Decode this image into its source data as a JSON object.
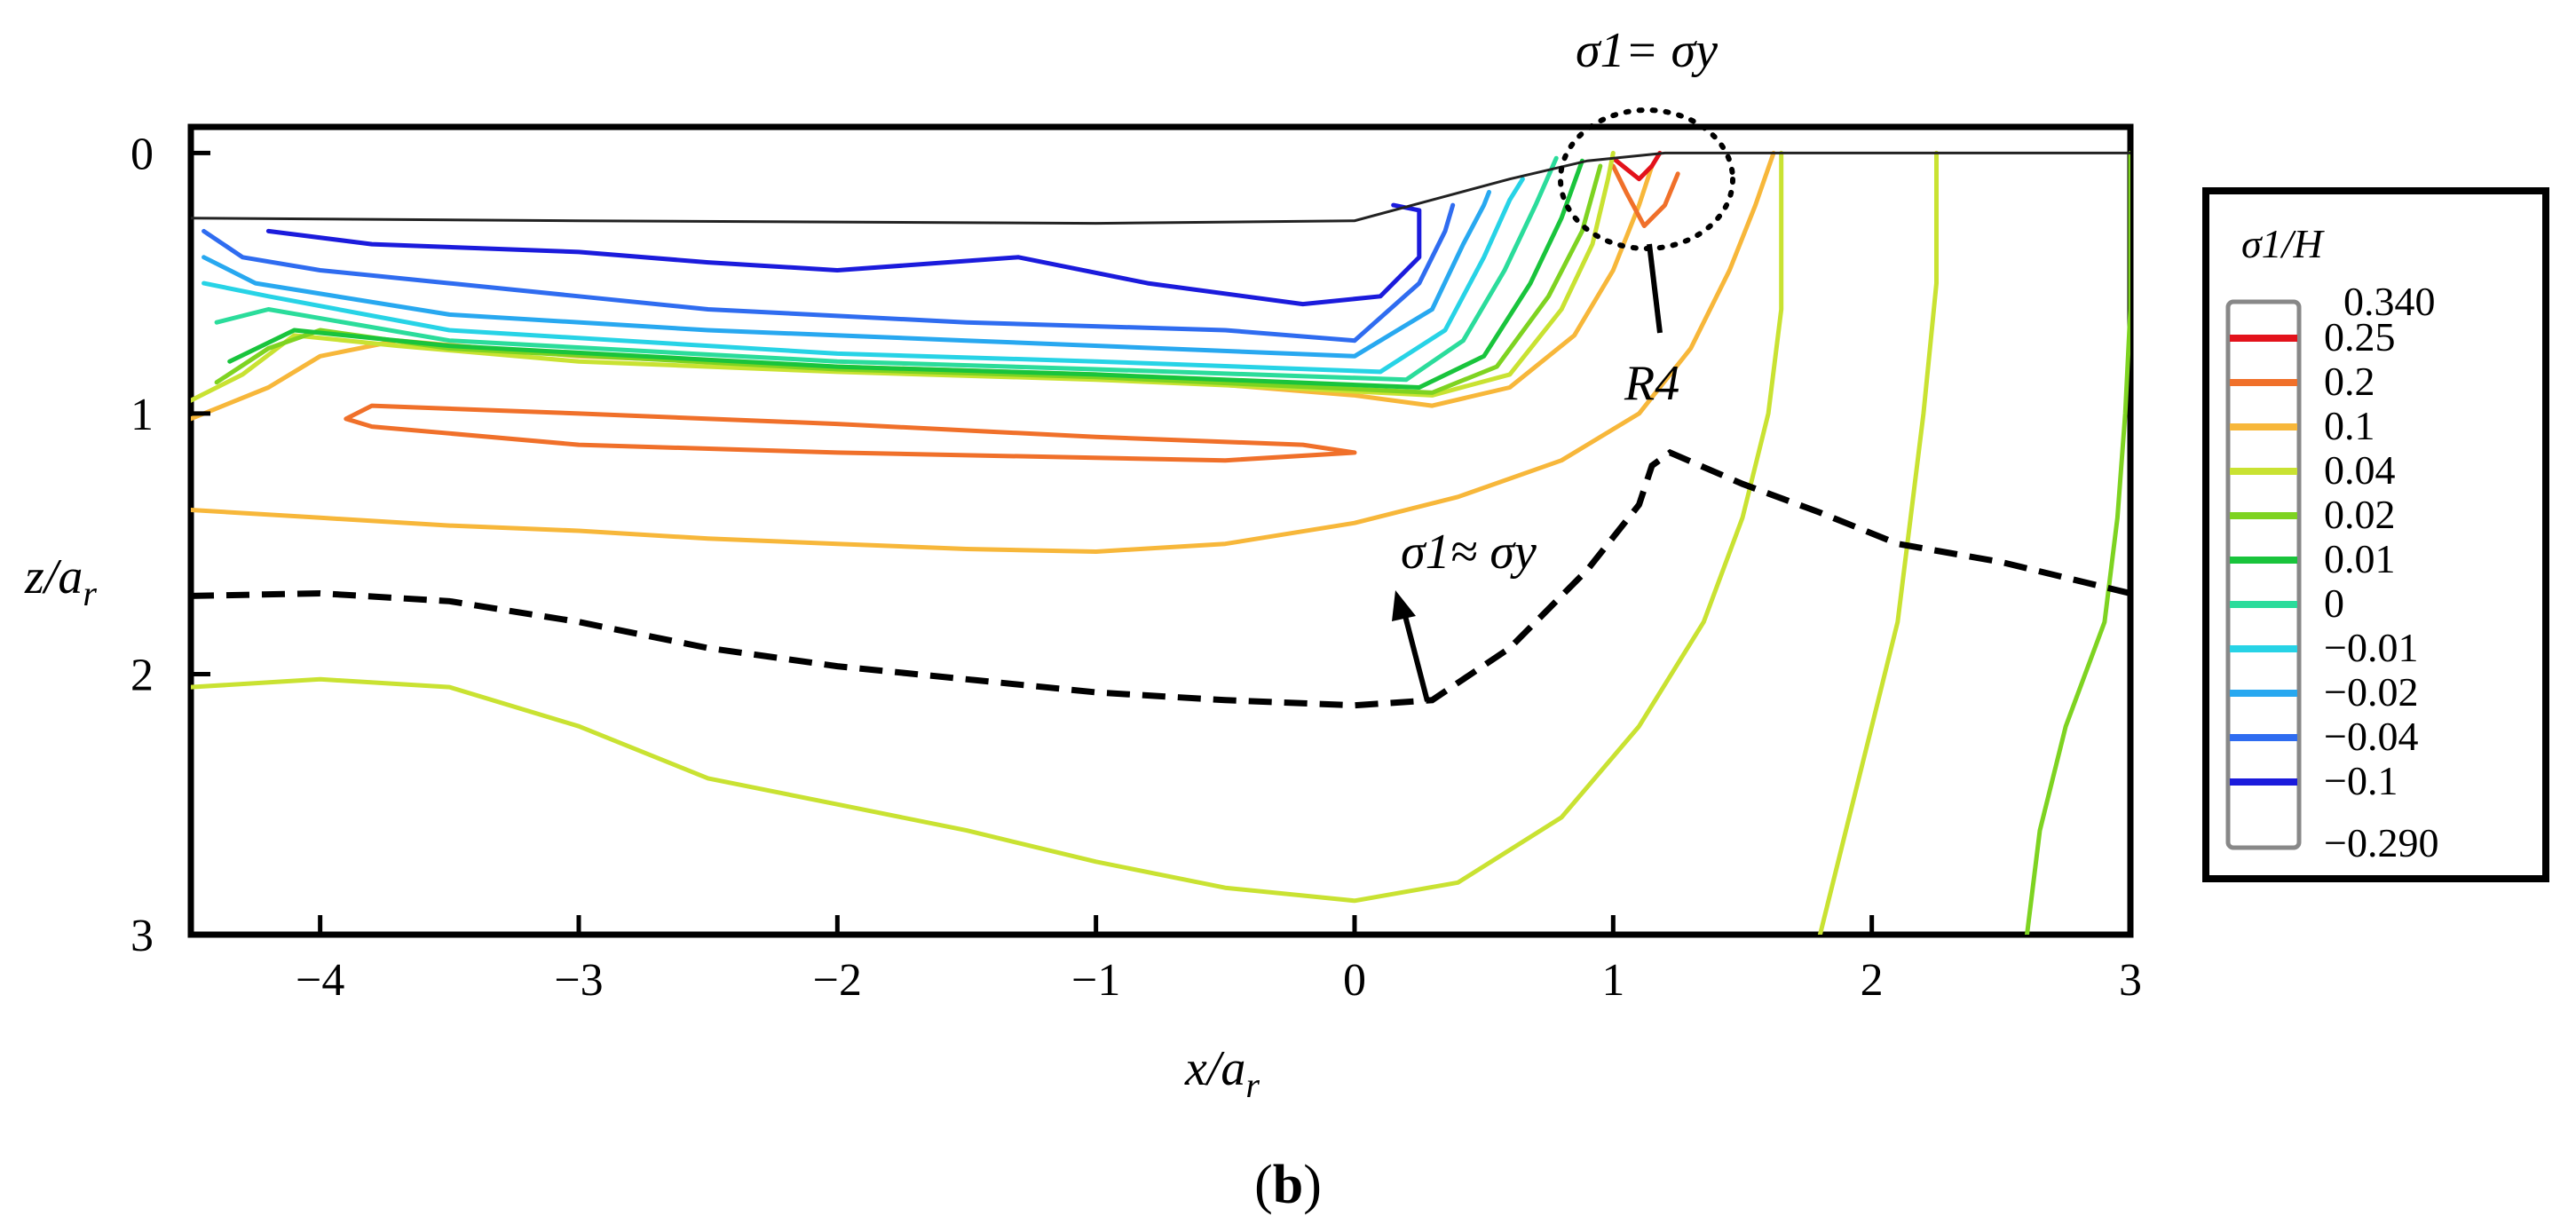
{
  "chart_data": {
    "type": "contour",
    "xlabel_symbol": "x",
    "xlabel_sub": "r",
    "xlabel_pre": "/a",
    "ylabel_symbol": "z",
    "ylabel_pre": "/a",
    "ylabel_sub": "r",
    "xlim": [
      -4.5,
      3
    ],
    "ylim": [
      3,
      -0.1
    ],
    "x_ticks": [
      "−4",
      "−3",
      "−2",
      "−1",
      "0",
      "1",
      "2",
      "3"
    ],
    "x_tick_values": [
      -4,
      -3,
      -2,
      -1,
      0,
      1,
      2,
      3
    ],
    "y_ticks": [
      "0",
      "1",
      "2",
      "3"
    ],
    "y_tick_values": [
      0,
      1,
      2,
      3
    ],
    "caption": "b",
    "annotations": {
      "yield_top": "σ1= σy",
      "yield_approx": "σ1≈ σy",
      "region_label": "R4"
    },
    "legend": {
      "title": "σ1/H",
      "max_label": "0.340",
      "min_label": "−0.290",
      "levels": [
        {
          "label": "0.25",
          "value": 0.25,
          "color": "#e3121b"
        },
        {
          "label": "0.2",
          "value": 0.2,
          "color": "#f0702a"
        },
        {
          "label": "0.1",
          "value": 0.1,
          "color": "#f7b73a"
        },
        {
          "label": "0.04",
          "value": 0.04,
          "color": "#c9e232"
        },
        {
          "label": "0.02",
          "value": 0.02,
          "color": "#7ed321"
        },
        {
          "label": "0.01",
          "value": 0.01,
          "color": "#19c43c"
        },
        {
          "label": "0",
          "value": 0,
          "color": "#2bdc9b"
        },
        {
          "label": "−0.01",
          "value": -0.01,
          "color": "#27d3e6"
        },
        {
          "label": "−0.02",
          "value": -0.02,
          "color": "#28a8f0"
        },
        {
          "label": "−0.04",
          "value": -0.04,
          "color": "#2f6cf0"
        },
        {
          "label": "−0.1",
          "value": -0.1,
          "color": "#1b1bdc"
        }
      ]
    },
    "contours": [
      {
        "level": 0.04,
        "points": [
          [
            -4.5,
            2.05
          ],
          [
            -4,
            2.02
          ],
          [
            -3.5,
            2.05
          ],
          [
            -3,
            2.2
          ],
          [
            -2.5,
            2.4
          ],
          [
            -2,
            2.5
          ],
          [
            -1.5,
            2.6
          ],
          [
            -1,
            2.72
          ],
          [
            -0.5,
            2.82
          ],
          [
            0,
            2.87
          ],
          [
            0.4,
            2.8
          ],
          [
            0.8,
            2.55
          ],
          [
            1.1,
            2.2
          ],
          [
            1.35,
            1.8
          ],
          [
            1.5,
            1.4
          ],
          [
            1.6,
            1
          ],
          [
            1.65,
            0.6
          ],
          [
            1.65,
            0.2
          ],
          [
            1.65,
            0
          ]
        ]
      },
      {
        "level": 0.04,
        "points": [
          [
            1.8,
            3
          ],
          [
            1.9,
            2.6
          ],
          [
            2,
            2.2
          ],
          [
            2.1,
            1.8
          ],
          [
            2.15,
            1.4
          ],
          [
            2.2,
            1
          ],
          [
            2.25,
            0.5
          ],
          [
            2.25,
            0
          ]
        ]
      },
      {
        "level": 0.02,
        "points": [
          [
            2.6,
            3
          ],
          [
            2.65,
            2.6
          ],
          [
            2.75,
            2.2
          ],
          [
            2.9,
            1.8
          ],
          [
            2.95,
            1.4
          ],
          [
            2.98,
            1
          ],
          [
            3,
            0.6
          ],
          [
            3,
            0
          ]
        ]
      },
      {
        "level": 0.1,
        "points": [
          [
            -4.5,
            1.37
          ],
          [
            -4,
            1.4
          ],
          [
            -3.5,
            1.43
          ],
          [
            -3,
            1.45
          ],
          [
            -2.5,
            1.48
          ],
          [
            -2,
            1.5
          ],
          [
            -1.5,
            1.52
          ],
          [
            -1,
            1.53
          ],
          [
            -0.5,
            1.5
          ],
          [
            0,
            1.42
          ],
          [
            0.4,
            1.32
          ],
          [
            0.8,
            1.18
          ],
          [
            1.1,
            1
          ],
          [
            1.3,
            0.75
          ],
          [
            1.45,
            0.45
          ],
          [
            1.55,
            0.2
          ],
          [
            1.62,
            0
          ]
        ]
      },
      {
        "level": 0.1,
        "points": [
          [
            -4.5,
            1.02
          ],
          [
            -4.2,
            0.9
          ],
          [
            -4,
            0.78
          ],
          [
            -3.7,
            0.72
          ],
          [
            -3,
            0.78
          ],
          [
            -2,
            0.82
          ],
          [
            -1,
            0.85
          ],
          [
            0,
            0.93
          ],
          [
            0.3,
            0.97
          ],
          [
            0.6,
            0.9
          ],
          [
            0.85,
            0.7
          ],
          [
            1,
            0.45
          ],
          [
            1.1,
            0.2
          ],
          [
            1.15,
            0.05
          ]
        ]
      },
      {
        "level": 0.2,
        "closed": true,
        "points": [
          [
            -3.9,
            1.02
          ],
          [
            -3.8,
            0.97
          ],
          [
            -3,
            1.0
          ],
          [
            -2,
            1.04
          ],
          [
            -1,
            1.09
          ],
          [
            -0.2,
            1.12
          ],
          [
            0,
            1.15
          ],
          [
            -0.5,
            1.18
          ],
          [
            -2,
            1.15
          ],
          [
            -3,
            1.12
          ],
          [
            -3.8,
            1.05
          ]
        ]
      },
      {
        "level": 0.2,
        "points": [
          [
            1,
            0.05
          ],
          [
            1.05,
            0.15
          ],
          [
            1.12,
            0.28
          ],
          [
            1.2,
            0.2
          ],
          [
            1.25,
            0.08
          ]
        ]
      },
      {
        "level": 0.25,
        "points": [
          [
            1,
            0.02
          ],
          [
            1.05,
            0.06
          ],
          [
            1.1,
            0.1
          ],
          [
            1.15,
            0.05
          ],
          [
            1.18,
            0
          ]
        ]
      },
      {
        "level": 0.04,
        "points": [
          [
            -4.5,
            0.95
          ],
          [
            -4.3,
            0.85
          ],
          [
            -4.1,
            0.7
          ],
          [
            -3.7,
            0.74
          ],
          [
            -3,
            0.8
          ],
          [
            -2,
            0.84
          ],
          [
            -1,
            0.87
          ],
          [
            -0.3,
            0.9
          ],
          [
            0.3,
            0.93
          ],
          [
            0.6,
            0.85
          ],
          [
            0.8,
            0.6
          ],
          [
            0.92,
            0.35
          ],
          [
            0.98,
            0.1
          ],
          [
            1,
            0
          ]
        ]
      },
      {
        "level": 0.02,
        "points": [
          [
            -4.4,
            0.88
          ],
          [
            -4.2,
            0.75
          ],
          [
            -4,
            0.68
          ],
          [
            -3.5,
            0.75
          ],
          [
            -2,
            0.83
          ],
          [
            -1,
            0.86
          ],
          [
            0.3,
            0.92
          ],
          [
            0.55,
            0.82
          ],
          [
            0.75,
            0.55
          ],
          [
            0.88,
            0.3
          ],
          [
            0.95,
            0.05
          ]
        ]
      },
      {
        "level": 0.01,
        "points": [
          [
            -4.35,
            0.8
          ],
          [
            -4.1,
            0.68
          ],
          [
            -3.5,
            0.74
          ],
          [
            -2,
            0.82
          ],
          [
            -1,
            0.85
          ],
          [
            0.25,
            0.9
          ],
          [
            0.5,
            0.78
          ],
          [
            0.68,
            0.5
          ],
          [
            0.8,
            0.25
          ],
          [
            0.88,
            0.03
          ]
        ]
      },
      {
        "level": 0,
        "points": [
          [
            -4.4,
            0.65
          ],
          [
            -4.2,
            0.6
          ],
          [
            -3.5,
            0.72
          ],
          [
            -2,
            0.8
          ],
          [
            -1,
            0.83
          ],
          [
            0.2,
            0.87
          ],
          [
            0.42,
            0.72
          ],
          [
            0.58,
            0.45
          ],
          [
            0.7,
            0.2
          ],
          [
            0.78,
            0.02
          ]
        ]
      },
      {
        "level": -0.01,
        "points": [
          [
            -4.45,
            0.5
          ],
          [
            -4.2,
            0.55
          ],
          [
            -3.5,
            0.68
          ],
          [
            -2,
            0.77
          ],
          [
            -1,
            0.8
          ],
          [
            0.1,
            0.84
          ],
          [
            0.35,
            0.68
          ],
          [
            0.5,
            0.4
          ],
          [
            0.6,
            0.18
          ],
          [
            0.65,
            0.1
          ]
        ]
      },
      {
        "level": -0.02,
        "points": [
          [
            -4.45,
            0.4
          ],
          [
            -4.25,
            0.5
          ],
          [
            -3.5,
            0.62
          ],
          [
            -2.5,
            0.68
          ],
          [
            -1.5,
            0.72
          ],
          [
            0,
            0.78
          ],
          [
            0.3,
            0.6
          ],
          [
            0.42,
            0.35
          ],
          [
            0.5,
            0.2
          ],
          [
            0.52,
            0.15
          ]
        ]
      },
      {
        "level": -0.04,
        "points": [
          [
            -4.45,
            0.3
          ],
          [
            -4.3,
            0.4
          ],
          [
            -4,
            0.45
          ],
          [
            -3.5,
            0.5
          ],
          [
            -3,
            0.55
          ],
          [
            -2.5,
            0.6
          ],
          [
            -1.5,
            0.65
          ],
          [
            -0.5,
            0.68
          ],
          [
            0,
            0.72
          ],
          [
            0.25,
            0.5
          ],
          [
            0.35,
            0.3
          ],
          [
            0.38,
            0.2
          ]
        ]
      },
      {
        "level": -0.1,
        "points": [
          [
            -4.2,
            0.3
          ],
          [
            -3.8,
            0.35
          ],
          [
            -3,
            0.38
          ],
          [
            -2.5,
            0.42
          ],
          [
            -2,
            0.45
          ],
          [
            -1.3,
            0.4
          ],
          [
            -0.8,
            0.5
          ],
          [
            -0.2,
            0.58
          ],
          [
            0.1,
            0.55
          ],
          [
            0.25,
            0.4
          ],
          [
            0.25,
            0.22
          ],
          [
            0.15,
            0.2
          ]
        ]
      }
    ],
    "yield_curve_dashed": [
      [
        -4.5,
        1.7
      ],
      [
        -4,
        1.69
      ],
      [
        -3.5,
        1.72
      ],
      [
        -3,
        1.8
      ],
      [
        -2.5,
        1.9
      ],
      [
        -2,
        1.97
      ],
      [
        -1.5,
        2.02
      ],
      [
        -1,
        2.07
      ],
      [
        -0.5,
        2.1
      ],
      [
        0,
        2.12
      ],
      [
        0.3,
        2.1
      ],
      [
        0.6,
        1.9
      ],
      [
        0.9,
        1.6
      ],
      [
        1.1,
        1.35
      ],
      [
        1.15,
        1.2
      ],
      [
        1.22,
        1.15
      ],
      [
        1.5,
        1.27
      ],
      [
        1.8,
        1.38
      ],
      [
        2.1,
        1.5
      ],
      [
        2.5,
        1.57
      ],
      [
        3,
        1.69
      ]
    ],
    "surface_line": [
      [
        -4.5,
        0.25
      ],
      [
        -3,
        0.26
      ],
      [
        -1,
        0.27
      ],
      [
        0,
        0.26
      ],
      [
        0.3,
        0.18
      ],
      [
        0.6,
        0.1
      ],
      [
        0.9,
        0.03
      ],
      [
        1.2,
        0
      ],
      [
        2,
        0
      ],
      [
        3,
        0
      ]
    ]
  }
}
